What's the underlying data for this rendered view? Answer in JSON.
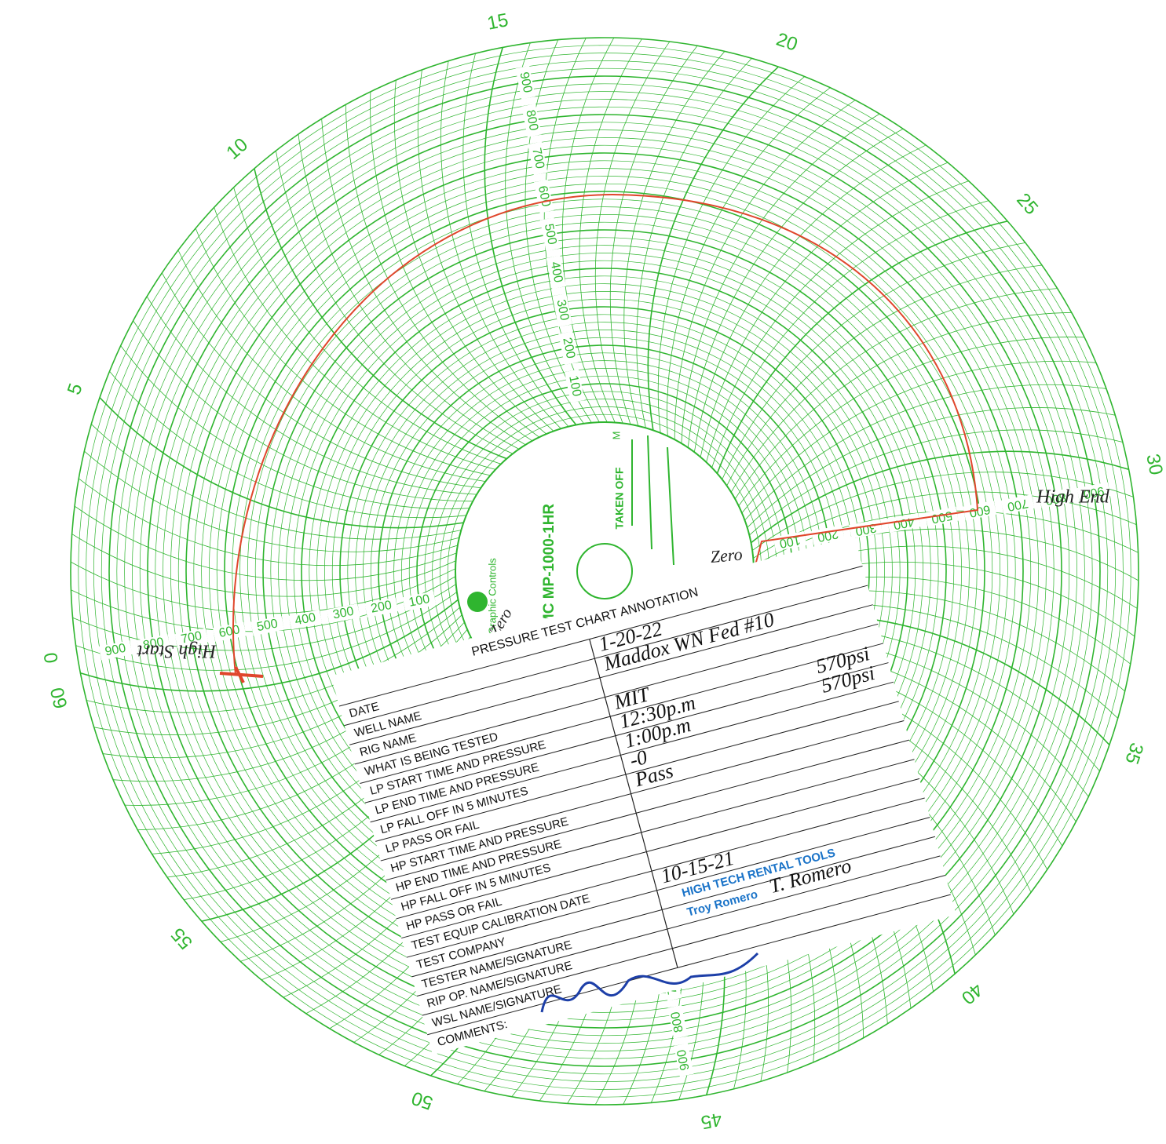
{
  "chart_labels": {
    "minutes": [
      "0",
      "5",
      "10",
      "15",
      "20",
      "25",
      "30",
      "35",
      "40",
      "45",
      "50",
      "55",
      "60"
    ],
    "pressure_scale": [
      "100",
      "200",
      "300",
      "400",
      "500",
      "600",
      "700",
      "800",
      "900"
    ],
    "center": {
      "model": "MC MP-1000-1HR",
      "brand": "Graphic Controls",
      "taken_off": "TAKEN OFF",
      "mark": "M"
    }
  },
  "handwriting": {
    "high_end": "High End",
    "high_start": "High Start",
    "zero": "Zero"
  },
  "card": {
    "title": "PRESSURE TEST CHART ANNOTATION",
    "fields": [
      {
        "label": "DATE",
        "value": "1-20-22"
      },
      {
        "label": "WELL NAME",
        "value": "Maddox WN Fed #10"
      },
      {
        "label": "RIG NAME"
      },
      {
        "label": "WHAT IS BEING TESTED",
        "value": "MIT"
      },
      {
        "label": "LP START TIME AND PRESSURE",
        "value": "12:30p.m",
        "pressure": "570psi"
      },
      {
        "label": "LP END TIME AND PRESSURE",
        "value": "1:00p.m",
        "pressure": "570psi"
      },
      {
        "label": "LP FALL OFF IN 5 MINUTES",
        "value": "-0"
      },
      {
        "label": "LP PASS OR FAIL",
        "value": "Pass"
      },
      {
        "label": "HP START TIME AND PRESSURE"
      },
      {
        "label": "HP END TIME AND PRESSURE"
      },
      {
        "label": "HP FALL OFF IN 5 MINUTES"
      },
      {
        "label": "HP PASS OR FAIL"
      },
      {
        "label": "TEST EQUIP CALIBRATION DATE",
        "value": "10-15-21"
      },
      {
        "label": "TEST COMPANY",
        "value": "HIGH TECH RENTAL TOOLS"
      },
      {
        "label": "TESTER NAME/SIGNATURE",
        "value": "Troy Romero",
        "pressure": "T. Romero"
      },
      {
        "label": "RIP OP. NAME/SIGNATURE"
      },
      {
        "label": "WSL NAME/SIGNATURE"
      },
      {
        "label": "COMMENTS:"
      }
    ]
  }
}
